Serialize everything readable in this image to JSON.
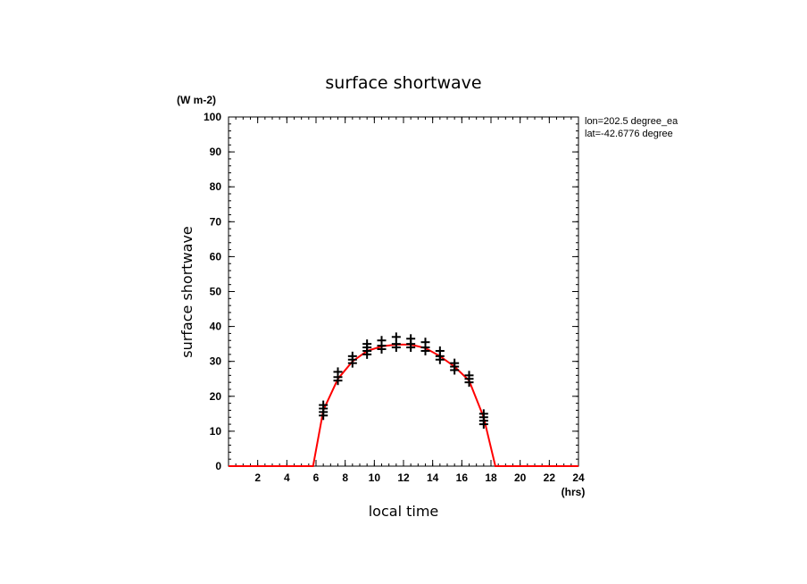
{
  "chart_data": {
    "type": "scatter",
    "title": "surface shortwave",
    "units_label": "(W m-2)",
    "xlabel": "local time",
    "x_units": "(hrs)",
    "ylabel": "surface shortwave",
    "xlim": [
      0,
      24
    ],
    "ylim": [
      0,
      100
    ],
    "x_ticks": [
      2,
      4,
      6,
      8,
      10,
      12,
      14,
      16,
      18,
      20,
      22,
      24
    ],
    "y_ticks": [
      0,
      10,
      20,
      30,
      40,
      50,
      60,
      70,
      80,
      90,
      100
    ],
    "grid": false,
    "info_lines": [
      "lon=202.5 degree_ea",
      "lat=-42.6776 degree"
    ],
    "series": [
      {
        "marker": "+",
        "color": "#000000",
        "points": [
          [
            6.5,
            14.5
          ],
          [
            6.5,
            15.5
          ],
          [
            6.5,
            16.5
          ],
          [
            6.5,
            17.5
          ],
          [
            7.5,
            24.5
          ],
          [
            7.5,
            25.5
          ],
          [
            7.5,
            27
          ],
          [
            8.5,
            29.5
          ],
          [
            8.5,
            30.5
          ],
          [
            8.5,
            31.5
          ],
          [
            9.5,
            32
          ],
          [
            9.5,
            33
          ],
          [
            9.5,
            34
          ],
          [
            9.5,
            35
          ],
          [
            10.5,
            33.5
          ],
          [
            10.5,
            34.5
          ],
          [
            10.5,
            36
          ],
          [
            11.5,
            34
          ],
          [
            11.5,
            35
          ],
          [
            11.5,
            37
          ],
          [
            12.5,
            34
          ],
          [
            12.5,
            35
          ],
          [
            12.5,
            36.5
          ],
          [
            13.5,
            33
          ],
          [
            13.5,
            34
          ],
          [
            13.5,
            35.5
          ],
          [
            14.5,
            30.5
          ],
          [
            14.5,
            31.5
          ],
          [
            14.5,
            33
          ],
          [
            15.5,
            27.5
          ],
          [
            15.5,
            28.5
          ],
          [
            15.5,
            29.5
          ],
          [
            16.5,
            24
          ],
          [
            16.5,
            25
          ],
          [
            16.5,
            26
          ],
          [
            17.5,
            12
          ],
          [
            17.5,
            13
          ],
          [
            17.5,
            14
          ],
          [
            17.5,
            15
          ]
        ]
      },
      {
        "type": "line",
        "color": "#ff0000",
        "points": [
          [
            0,
            0
          ],
          [
            1,
            0
          ],
          [
            2,
            0
          ],
          [
            3,
            0
          ],
          [
            4,
            0
          ],
          [
            5,
            0
          ],
          [
            5.8,
            0
          ],
          [
            6.5,
            16
          ],
          [
            7.5,
            25
          ],
          [
            8.5,
            30
          ],
          [
            9.5,
            33
          ],
          [
            10.5,
            34.3
          ],
          [
            11.5,
            34.8
          ],
          [
            12.5,
            34.8
          ],
          [
            13.5,
            33.8
          ],
          [
            14.5,
            31.5
          ],
          [
            15.5,
            28.5
          ],
          [
            16.5,
            24.5
          ],
          [
            17.5,
            14
          ],
          [
            18.3,
            0
          ],
          [
            19,
            0
          ],
          [
            20,
            0
          ],
          [
            21,
            0
          ],
          [
            22,
            0
          ],
          [
            23,
            0
          ],
          [
            24,
            0
          ]
        ]
      }
    ]
  }
}
